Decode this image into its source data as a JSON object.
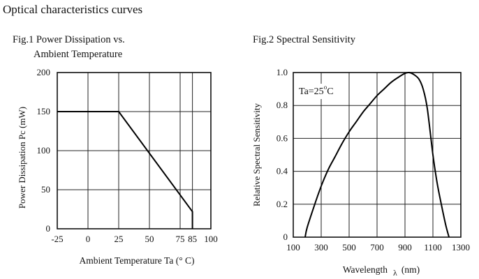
{
  "page": {
    "title": "Optical characteristics curves"
  },
  "chart_data": [
    {
      "type": "line",
      "title": "Fig.1 Power Dissipation vs.",
      "title_line2": "Ambient Temperature",
      "xlabel": "Ambient Temperature Ta (° C)",
      "ylabel": "Power Dissipation Pc (mW)",
      "xlim": [
        -25,
        100
      ],
      "ylim": [
        0,
        200
      ],
      "x_ticks": [
        -25,
        0,
        25,
        50,
        75,
        85,
        100
      ],
      "x_tick_labels": [
        "-25",
        "0",
        "25",
        "50",
        "75",
        "85",
        "100"
      ],
      "y_ticks": [
        0,
        50,
        100,
        150,
        200
      ],
      "y_tick_labels": [
        "0",
        "50",
        "100",
        "150",
        "200"
      ],
      "grid": true,
      "series": [
        {
          "x": [
            -25,
            25,
            85,
            85
          ],
          "y": [
            150,
            150,
            22,
            0
          ]
        }
      ]
    },
    {
      "type": "line",
      "title": "Fig.2 Spectral Sensitivity",
      "xlabel": "Wavelength λ (nm)",
      "xlabel_main": "Wavelength",
      "xlabel_symbol": "λ",
      "xlabel_unit": "(nm)",
      "ylabel": "Relative Spectral Sensitivity",
      "xlim": [
        100,
        1300
      ],
      "ylim": [
        0,
        1.0
      ],
      "x_ticks": [
        100,
        300,
        500,
        700,
        900,
        1100,
        1300
      ],
      "x_tick_labels": [
        "100",
        "300",
        "500",
        "700",
        "900",
        "1100",
        "1300"
      ],
      "y_ticks": [
        0,
        0.2,
        0.4,
        0.6,
        0.8,
        1.0
      ],
      "y_tick_labels": [
        "0",
        "0.2",
        "0.4",
        "0.6",
        "0.8",
        "1.0"
      ],
      "grid": true,
      "annotation": "Ta=25°C",
      "annotation_main": "Ta=25",
      "annotation_deg": "o",
      "annotation_unit": "C",
      "series": [
        {
          "x": [
            185,
            200,
            250,
            300,
            350,
            400,
            450,
            500,
            550,
            600,
            650,
            700,
            750,
            800,
            850,
            900,
            930,
            960,
            1000,
            1030,
            1060,
            1100,
            1130,
            1160,
            1190,
            1215
          ],
          "y": [
            0,
            0.06,
            0.19,
            0.31,
            0.41,
            0.49,
            0.57,
            0.64,
            0.7,
            0.76,
            0.81,
            0.86,
            0.9,
            0.94,
            0.97,
            0.995,
            1.0,
            0.99,
            0.96,
            0.9,
            0.78,
            0.5,
            0.33,
            0.2,
            0.08,
            0
          ]
        }
      ]
    }
  ]
}
